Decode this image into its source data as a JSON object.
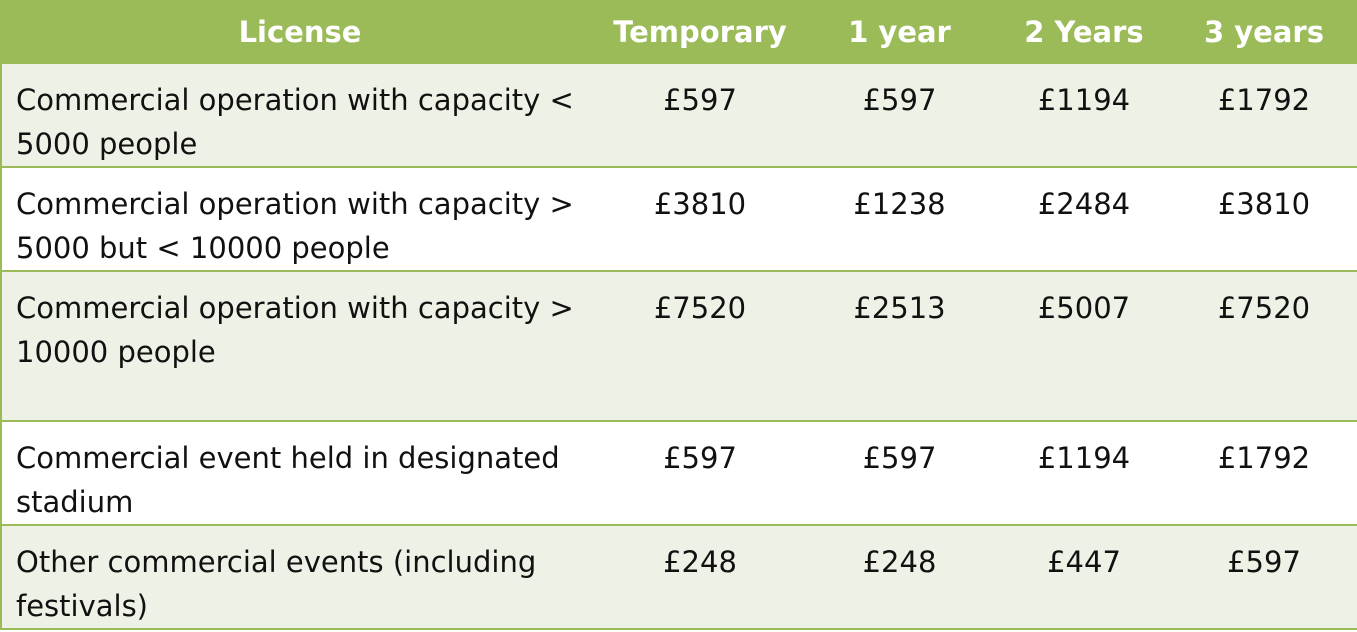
{
  "table": {
    "headers": [
      "License",
      "Temporary",
      "1 year",
      "2 Years",
      "3 years"
    ],
    "rows": [
      {
        "license": "Commercial operation with capacity < 5000 people",
        "temporary": "£597",
        "one_year": "£597",
        "two_years": "£1194",
        "three_years": "£1792"
      },
      {
        "license": "Commercial operation with capacity > 5000 but < 10000 people",
        "temporary": "£3810",
        "one_year": "£1238",
        "two_years": "£2484",
        "three_years": "£3810"
      },
      {
        "license": "Commercial operation with capacity > 10000 people",
        "temporary": "£7520",
        "one_year": "£2513",
        "two_years": "£5007",
        "three_years": "£7520"
      },
      {
        "license": "Commercial event held in designated stadium",
        "temporary": "£597",
        "one_year": "£597",
        "two_years": "£1194",
        "three_years": "£1792"
      },
      {
        "license": "Other commercial events (including festivals)",
        "temporary": "£248",
        "one_year": "£248",
        "two_years": "£447",
        "three_years": "£597"
      }
    ]
  },
  "colors": {
    "header_bg": "#9bbb59",
    "header_text": "#ffffff",
    "band_row_bg": "#eef2e6",
    "border": "#9bbb59"
  }
}
